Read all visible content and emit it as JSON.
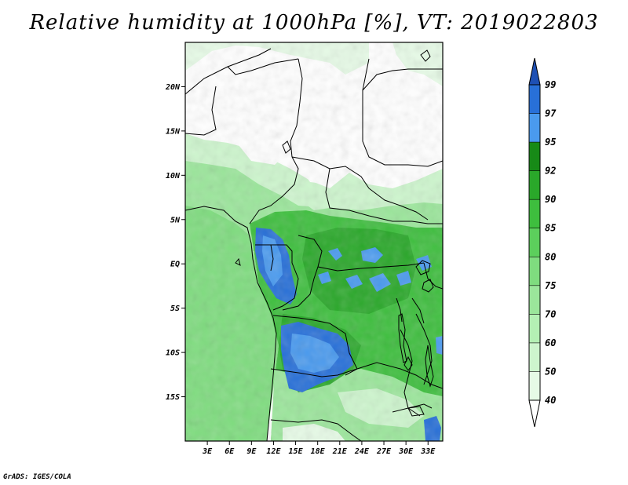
{
  "title": "Relative humidity at 1000hPa [%], VT: 2019022803",
  "footer": "GrADS: IGES/COLA",
  "map": {
    "lon_range": [
      0,
      35
    ],
    "lat_range": [
      -20,
      25
    ],
    "lat_ticks": [
      {
        "value": 20,
        "label": "20N"
      },
      {
        "value": 15,
        "label": "15N"
      },
      {
        "value": 10,
        "label": "10N"
      },
      {
        "value": 5,
        "label": "5N"
      },
      {
        "value": 0,
        "label": "EQ"
      },
      {
        "value": -5,
        "label": "5S"
      },
      {
        "value": -10,
        "label": "10S"
      },
      {
        "value": -15,
        "label": "15S"
      }
    ],
    "lon_ticks": [
      {
        "value": 3,
        "label": "3E"
      },
      {
        "value": 6,
        "label": "6E"
      },
      {
        "value": 9,
        "label": "9E"
      },
      {
        "value": 12,
        "label": "12E"
      },
      {
        "value": 15,
        "label": "15E"
      },
      {
        "value": 18,
        "label": "18E"
      },
      {
        "value": 21,
        "label": "21E"
      },
      {
        "value": 24,
        "label": "24E"
      },
      {
        "value": 27,
        "label": "27E"
      },
      {
        "value": 30,
        "label": "30E"
      },
      {
        "value": 33,
        "label": "33E"
      }
    ]
  },
  "colorbar": {
    "levels": [
      "40",
      "50",
      "60",
      "70",
      "75",
      "80",
      "85",
      "90",
      "92",
      "95",
      "97",
      "99"
    ],
    "colors": {
      "lt40": "#ffffff",
      "40_50": "#e6fae6",
      "50_60": "#cdf5cd",
      "60_70": "#b4f0b4",
      "70_75": "#9be69b",
      "75_80": "#7fdc7f",
      "80_85": "#5ccf5c",
      "85_90": "#3ebe3e",
      "90_92": "#2aa82a",
      "92_95": "#178a17",
      "95_97": "#4a9aee",
      "97_99": "#2870d8",
      "gt99": "#1e50b4"
    }
  }
}
